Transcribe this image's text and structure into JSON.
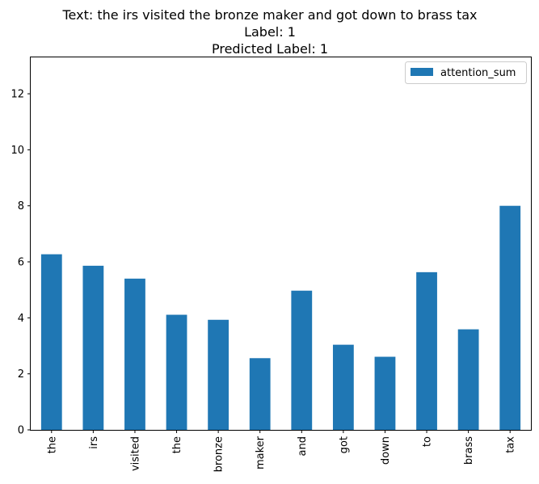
{
  "chart_data": {
    "type": "bar",
    "title_lines": [
      "Text: the irs visited the bronze maker and got down to brass tax",
      "Label: 1",
      "Predicted Label: 1"
    ],
    "xlabel": "",
    "ylabel": "",
    "categories": [
      "the",
      "irs",
      "visited",
      "the",
      "bronze",
      "maker",
      "and",
      "got",
      "down",
      "to",
      "brass",
      "tax"
    ],
    "series": [
      {
        "name": "attention_sum",
        "color": "#1f77b4",
        "values": [
          6.27,
          5.86,
          5.4,
          4.11,
          3.93,
          2.56,
          4.97,
          3.04,
          2.61,
          5.63,
          3.59,
          8.0
        ]
      }
    ],
    "ylim": [
      0,
      13.3
    ],
    "yticks": [
      0,
      2,
      4,
      6,
      8,
      10,
      12
    ],
    "grid": false,
    "legend_position": "upper right"
  }
}
